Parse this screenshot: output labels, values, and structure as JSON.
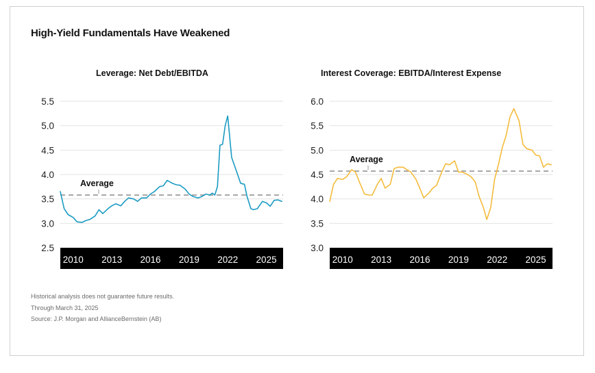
{
  "main_title": "High-Yield Fundamentals Have Weakened",
  "footnotes": [
    "Historical analysis does not guarantee future results.",
    "Through March 31, 2025",
    "Source: J.P. Morgan and AllianceBernstein (AB)"
  ],
  "colors": {
    "leverage_line": "#1a9bc2",
    "coverage_line": "#f4bb3c",
    "average_line": "#a8a8a8",
    "axis_band": "#000000"
  },
  "chart_data": [
    {
      "type": "line",
      "title": "Leverage: Net Debt/EBITDA",
      "ylim": [
        2.5,
        5.5
      ],
      "yticks": [
        "5.5",
        "5.0",
        "4.5",
        "4.0",
        "3.5",
        "3.0",
        "2.5"
      ],
      "xlim": [
        2009.0,
        2026.3
      ],
      "xticks": [
        "2010",
        "2013",
        "2016",
        "2019",
        "2022",
        "2025"
      ],
      "grid": true,
      "average_label": "Average",
      "average_value": 3.58,
      "series": [
        {
          "x": [
            2009.0,
            2009.3,
            2009.6,
            2010.0,
            2010.3,
            2010.7,
            2011.0,
            2011.3,
            2011.7,
            2012.0,
            2012.3,
            2012.7,
            2013.0,
            2013.3,
            2013.7,
            2014.0,
            2014.3,
            2014.7,
            2015.0,
            2015.3,
            2015.7,
            2016.0,
            2016.3,
            2016.7,
            2017.0,
            2017.3,
            2017.7,
            2018.0,
            2018.3,
            2018.7,
            2019.0,
            2019.3,
            2019.7,
            2020.0,
            2020.3,
            2020.6,
            2020.8,
            2021.0,
            2021.2,
            2021.4,
            2021.6,
            2021.8,
            2022.0,
            2022.3,
            2022.7,
            2023.0,
            2023.3,
            2023.5,
            2023.8,
            2024.0,
            2024.3,
            2024.7,
            2025.0,
            2025.3,
            2025.6,
            2025.9,
            2026.2
          ],
          "y": [
            3.65,
            3.3,
            3.18,
            3.12,
            3.03,
            3.02,
            3.06,
            3.08,
            3.15,
            3.28,
            3.2,
            3.3,
            3.36,
            3.4,
            3.36,
            3.45,
            3.52,
            3.5,
            3.45,
            3.52,
            3.52,
            3.6,
            3.65,
            3.75,
            3.77,
            3.88,
            3.82,
            3.79,
            3.78,
            3.7,
            3.6,
            3.55,
            3.52,
            3.55,
            3.6,
            3.58,
            3.62,
            3.58,
            3.75,
            4.6,
            4.62,
            5.0,
            5.2,
            4.35,
            4.05,
            3.82,
            3.8,
            3.55,
            3.3,
            3.28,
            3.3,
            3.45,
            3.42,
            3.35,
            3.47,
            3.48,
            3.45
          ]
        }
      ]
    },
    {
      "type": "line",
      "title": "Interest Coverage: EBITDA/Interest Expense",
      "ylim": [
        3.0,
        6.0
      ],
      "yticks": [
        "6.0",
        "5.5",
        "5.0",
        "4.5",
        "4.0",
        "3.5",
        "3.0"
      ],
      "xlim": [
        2009.0,
        2026.3
      ],
      "xticks": [
        "2010",
        "2013",
        "2016",
        "2019",
        "2022",
        "2025"
      ],
      "grid": true,
      "average_label": "Average",
      "average_value": 4.57,
      "series": [
        {
          "x": [
            2009.0,
            2009.3,
            2009.6,
            2010.0,
            2010.3,
            2010.7,
            2011.0,
            2011.3,
            2011.7,
            2012.0,
            2012.3,
            2012.7,
            2013.0,
            2013.3,
            2013.7,
            2014.0,
            2014.3,
            2014.7,
            2015.0,
            2015.3,
            2015.7,
            2016.0,
            2016.3,
            2016.7,
            2017.0,
            2017.3,
            2017.7,
            2018.0,
            2018.3,
            2018.7,
            2019.0,
            2019.3,
            2019.7,
            2020.0,
            2020.3,
            2020.6,
            2020.9,
            2021.2,
            2021.5,
            2021.8,
            2022.1,
            2022.4,
            2022.7,
            2023.0,
            2023.3,
            2023.7,
            2024.0,
            2024.3,
            2024.7,
            2025.0,
            2025.3,
            2025.6,
            2025.9,
            2026.2
          ],
          "y": [
            3.95,
            4.3,
            4.42,
            4.4,
            4.45,
            4.6,
            4.55,
            4.35,
            4.1,
            4.08,
            4.08,
            4.3,
            4.42,
            4.22,
            4.3,
            4.62,
            4.65,
            4.65,
            4.6,
            4.55,
            4.4,
            4.22,
            4.02,
            4.12,
            4.22,
            4.28,
            4.55,
            4.72,
            4.7,
            4.78,
            4.55,
            4.55,
            4.5,
            4.45,
            4.35,
            4.05,
            3.85,
            3.58,
            3.82,
            4.4,
            4.7,
            5.05,
            5.3,
            5.68,
            5.85,
            5.6,
            5.12,
            5.03,
            5.0,
            4.9,
            4.88,
            4.65,
            4.72,
            4.7
          ]
        }
      ]
    }
  ]
}
